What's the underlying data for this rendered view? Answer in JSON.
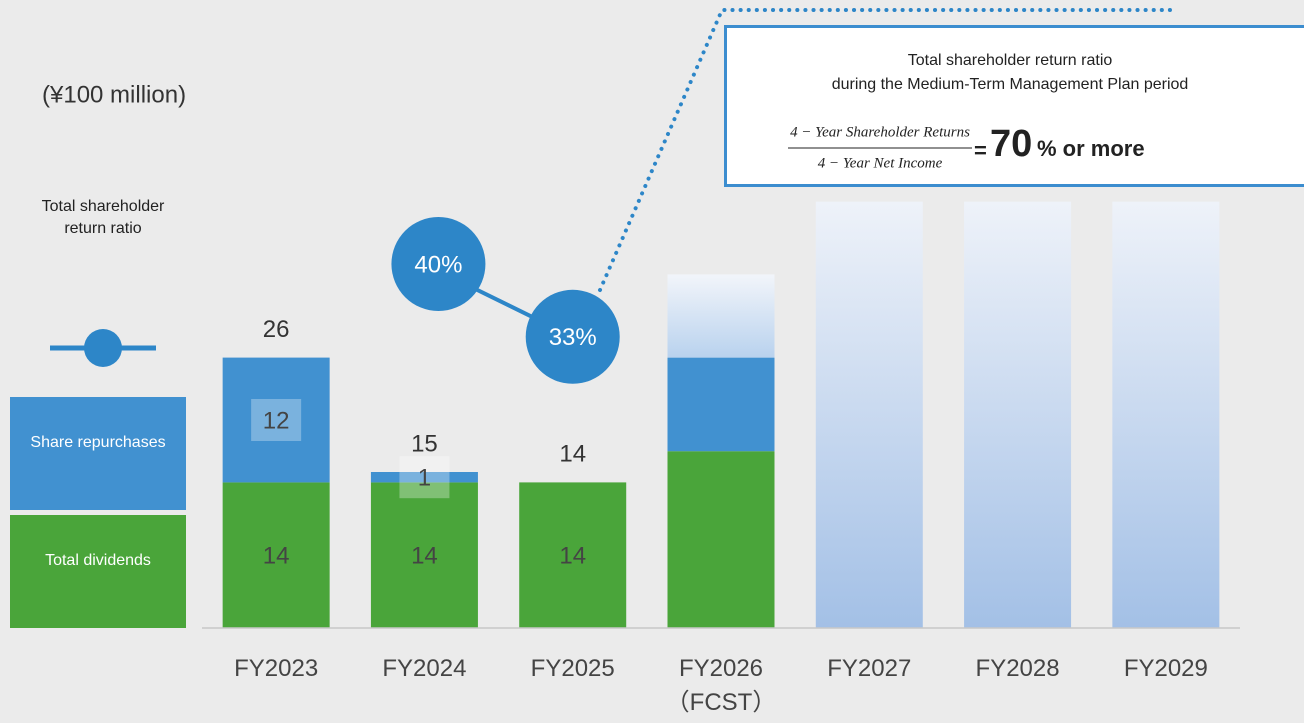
{
  "chart_data": {
    "type": "bar",
    "unit_label": "(¥100 million)",
    "categories": [
      "FY2023",
      "FY2024",
      "FY2025",
      "FY2026\n（FCST）",
      "FY2027",
      "FY2028",
      "FY2029"
    ],
    "series": [
      {
        "name": "Total dividends",
        "color": "#4aa53a",
        "values": [
          14,
          14,
          14,
          17,
          null,
          null,
          null
        ]
      },
      {
        "name": "Share repurchases",
        "color": "#4191d0",
        "values": [
          12,
          1,
          null,
          9,
          null,
          null,
          null
        ]
      },
      {
        "color": "#a3c0e6",
        "values": [
          null,
          null,
          null,
          8,
          41,
          41,
          41
        ]
      },
      {
        "name": "Total shareholder return ratio",
        "type": "line",
        "axis": "y2",
        "color": "#2d86c8",
        "values": [
          null,
          40,
          33,
          null,
          null,
          null,
          null
        ],
        "value_labels": [
          null,
          "40%",
          "33%",
          null,
          null,
          null,
          null
        ]
      }
    ],
    "totals": [
      26,
      15,
      14,
      null,
      null,
      null,
      null
    ],
    "ylim": [
      0,
      45
    ],
    "y2lim": [
      5,
      50
    ],
    "callout": {
      "title": [
        "Total shareholder return ratio",
        "during the Medium-Term Management Plan period"
      ],
      "numerator": "4 − Year Shareholder Returns",
      "denominator": "4 − Year Net Income",
      "equals": "=",
      "target": "70",
      "suffix": "% or more"
    }
  }
}
